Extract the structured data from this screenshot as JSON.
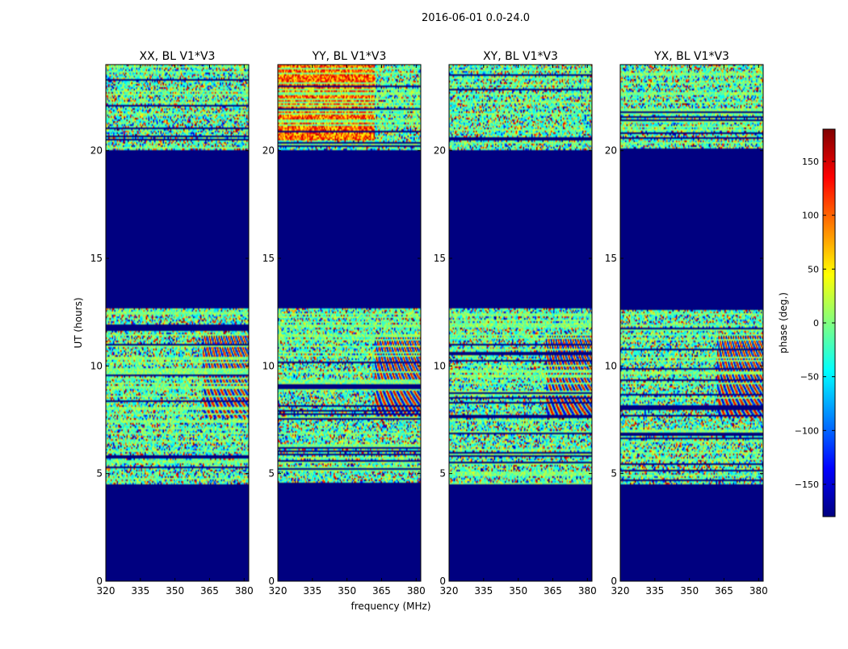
{
  "figure": {
    "suptitle": "2016-06-01 0.0-24.0",
    "xlabel": "frequency (MHz)",
    "ylabel": "UT (hours)"
  },
  "colorbar": {
    "label": "phase (deg.)",
    "colormap": "jet",
    "range": [
      -180,
      180
    ],
    "ticks": [
      -150,
      -100,
      -50,
      0,
      50,
      100,
      150
    ],
    "tick_labels": [
      "−150",
      "−100",
      "−50",
      "0",
      "50",
      "100",
      "150"
    ]
  },
  "chart_data": [
    {
      "type": "heatmap",
      "title": "XX, BL V1*V3",
      "x_range": [
        320,
        382
      ],
      "y_range": [
        0,
        24
      ],
      "x_ticks": [
        320,
        335,
        350,
        365,
        380
      ],
      "y_ticks": [
        0,
        5,
        10,
        15,
        20
      ],
      "z_quantity": "phase (deg.)",
      "flagged_intervals_ut": [
        [
          0,
          4.5
        ],
        [
          12.7,
          20.0
        ]
      ],
      "fringe_region_mhz": [
        362,
        382
      ]
    },
    {
      "type": "heatmap",
      "title": "YY, BL V1*V3",
      "x_range": [
        320,
        382
      ],
      "y_range": [
        0,
        24
      ],
      "x_ticks": [
        320,
        335,
        350,
        365,
        380
      ],
      "y_ticks": [
        0,
        5,
        10,
        15,
        20
      ],
      "z_quantity": "phase (deg.)",
      "flagged_intervals_ut": [
        [
          0,
          4.5
        ],
        [
          12.7,
          20.0
        ]
      ],
      "fringe_region_mhz": [
        362,
        382
      ]
    },
    {
      "type": "heatmap",
      "title": "XY, BL V1*V3",
      "x_range": [
        320,
        382
      ],
      "y_range": [
        0,
        24
      ],
      "x_ticks": [
        320,
        335,
        350,
        365,
        380
      ],
      "y_ticks": [
        0,
        5,
        10,
        15,
        20
      ],
      "z_quantity": "phase (deg.)",
      "flagged_intervals_ut": [
        [
          0,
          4.5
        ],
        [
          12.7,
          20.0
        ]
      ],
      "fringe_region_mhz": [
        362,
        382
      ]
    },
    {
      "type": "heatmap",
      "title": "YX, BL V1*V3",
      "x_range": [
        320,
        382
      ],
      "y_range": [
        0,
        24
      ],
      "x_ticks": [
        320,
        335,
        350,
        365,
        380
      ],
      "y_ticks": [
        0,
        5,
        10,
        15,
        20
      ],
      "z_quantity": "phase (deg.)",
      "flagged_intervals_ut": [
        [
          0,
          4.5
        ],
        [
          12.7,
          20.0
        ]
      ],
      "fringe_region_mhz": [
        362,
        382
      ]
    }
  ]
}
